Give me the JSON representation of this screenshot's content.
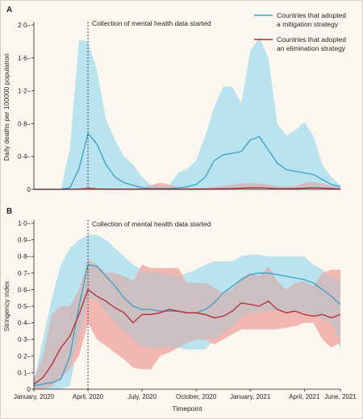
{
  "figure": {
    "xlabel": "Timepoint",
    "colors": {
      "mitigation": "#3a9fc7",
      "mitigation_band": "#b9e3ef",
      "elimination": "#b02a36",
      "elimination_band": "#f2b7b0",
      "overlap": "#cdbfc1",
      "axis": "#231f20",
      "background": "#fcf7ee"
    }
  },
  "chart_data": [
    {
      "panel": "A",
      "type": "area",
      "ylabel": "Daily deaths per 100000 population",
      "ylim": [
        0,
        2.0
      ],
      "yticks": [
        "0",
        "0·4",
        "0·8",
        "1·2",
        "1·6",
        "2·0"
      ],
      "ytick_values": [
        0,
        0.4,
        0.8,
        1.2,
        1.6,
        2.0
      ],
      "annotation": "Collection of mental health data started",
      "annotation_x": 3,
      "legend": [
        {
          "series": "mitigation",
          "label_lines": [
            "Countries that adopted",
            "a mitigation strategy"
          ]
        },
        {
          "series": "elimination",
          "label_lines": [
            "Countries that adopted",
            "an elimination strategy"
          ]
        }
      ],
      "legend_position": "top-right",
      "x": [
        0,
        0.5,
        1,
        1.5,
        2,
        2.5,
        3,
        3.5,
        4,
        4.5,
        5,
        5.5,
        6,
        6.5,
        7,
        7.5,
        8,
        8.5,
        9,
        9.5,
        10,
        10.5,
        11,
        11.5,
        12,
        12.5,
        13,
        13.5,
        14,
        14.5,
        15,
        15.5,
        16,
        16.5,
        17
      ],
      "series": [
        {
          "key": "mitigation",
          "name": "Countries that adopted a mitigation strategy",
          "mean": [
            0,
            0,
            0,
            0,
            0.02,
            0.25,
            0.68,
            0.55,
            0.3,
            0.15,
            0.08,
            0.05,
            0.02,
            0.01,
            0.01,
            0.01,
            0.02,
            0.03,
            0.06,
            0.15,
            0.35,
            0.42,
            0.44,
            0.46,
            0.6,
            0.64,
            0.48,
            0.32,
            0.24,
            0.22,
            0.2,
            0.18,
            0.12,
            0.06,
            0.03
          ],
          "upper": [
            0,
            0,
            0,
            0,
            0.5,
            1.82,
            1.8,
            1.45,
            0.85,
            0.6,
            0.4,
            0.3,
            0.15,
            0.05,
            0.03,
            0.05,
            0.2,
            0.25,
            0.35,
            0.65,
            1.0,
            1.25,
            1.25,
            1.05,
            1.68,
            1.85,
            1.6,
            0.8,
            0.65,
            0.72,
            0.82,
            0.65,
            0.3,
            0.15,
            0.05
          ],
          "lower": [
            0,
            0,
            0,
            0,
            0,
            0,
            0,
            0,
            0,
            0,
            0,
            0,
            0,
            0,
            0,
            0,
            0,
            0,
            0,
            0,
            0,
            0,
            0,
            0,
            0,
            0,
            0,
            0,
            0,
            0,
            0,
            0,
            0,
            0,
            0
          ]
        },
        {
          "key": "elimination",
          "name": "Countries that adopted an elimination strategy",
          "mean": [
            0,
            0,
            0,
            0,
            0,
            0.003,
            0.01,
            0.005,
            0.003,
            0.002,
            0.002,
            0.002,
            0.002,
            0.003,
            0.005,
            0.003,
            0.002,
            0.002,
            0.002,
            0.003,
            0.005,
            0.008,
            0.01,
            0.015,
            0.02,
            0.02,
            0.015,
            0.01,
            0.008,
            0.01,
            0.015,
            0.02,
            0.015,
            0.01,
            0.005
          ],
          "upper": [
            0,
            0,
            0,
            0,
            0,
            0.01,
            0.03,
            0.02,
            0.01,
            0.01,
            0.01,
            0.01,
            0.02,
            0.05,
            0.08,
            0.06,
            0.03,
            0.02,
            0.02,
            0.02,
            0.03,
            0.04,
            0.06,
            0.07,
            0.08,
            0.07,
            0.06,
            0.04,
            0.03,
            0.04,
            0.08,
            0.09,
            0.07,
            0.04,
            0.02
          ],
          "lower": [
            0,
            0,
            0,
            0,
            0,
            0,
            0,
            0,
            0,
            0,
            0,
            0,
            0,
            0,
            0,
            0,
            0,
            0,
            0,
            0,
            0,
            0,
            0,
            0,
            0,
            0,
            0,
            0,
            0,
            0,
            0,
            0,
            0,
            0,
            0
          ]
        }
      ]
    },
    {
      "panel": "B",
      "type": "area",
      "ylabel": "Stringency index",
      "ylim": [
        0,
        1.0
      ],
      "yticks": [
        "0",
        "0·1",
        "0·2",
        "0·3",
        "0·4",
        "0·5",
        "0·6",
        "0·7",
        "0·8",
        "0·9",
        "1·0"
      ],
      "ytick_values": [
        0,
        0.1,
        0.2,
        0.3,
        0.4,
        0.5,
        0.6,
        0.7,
        0.8,
        0.9,
        1.0
      ],
      "annotation": "Collection of mental health data started",
      "annotation_x": 3,
      "xticks": [
        "January, 2020",
        "April, 2020",
        "July, 2020",
        "October, 2020",
        "January, 2021",
        "April, 2021",
        "June, 2021"
      ],
      "xtick_values": [
        0,
        3,
        6,
        9,
        12,
        15,
        17
      ],
      "x": [
        0,
        0.5,
        1,
        1.5,
        2,
        2.5,
        3,
        3.5,
        4,
        4.5,
        5,
        5.5,
        6,
        6.5,
        7,
        7.5,
        8,
        8.5,
        9,
        9.5,
        10,
        10.5,
        11,
        11.5,
        12,
        12.5,
        13,
        13.5,
        14,
        14.5,
        15,
        15.5,
        16,
        16.5,
        17
      ],
      "series": [
        {
          "key": "mitigation",
          "name": "Countries that adopted a mitigation strategy",
          "mean": [
            0.02,
            0.03,
            0.04,
            0.06,
            0.2,
            0.5,
            0.75,
            0.74,
            0.68,
            0.62,
            0.55,
            0.5,
            0.48,
            0.48,
            0.47,
            0.47,
            0.47,
            0.46,
            0.46,
            0.48,
            0.52,
            0.58,
            0.62,
            0.66,
            0.69,
            0.7,
            0.7,
            0.69,
            0.68,
            0.67,
            0.66,
            0.64,
            0.6,
            0.56,
            0.51
          ],
          "upper": [
            0.05,
            0.3,
            0.55,
            0.75,
            0.85,
            0.9,
            0.93,
            0.93,
            0.9,
            0.85,
            0.8,
            0.75,
            0.72,
            0.7,
            0.7,
            0.69,
            0.68,
            0.7,
            0.72,
            0.75,
            0.77,
            0.77,
            0.77,
            0.8,
            0.81,
            0.81,
            0.8,
            0.8,
            0.8,
            0.8,
            0.8,
            0.75,
            0.72,
            0.68,
            0.65
          ],
          "lower": [
            0,
            0,
            0,
            0,
            0.02,
            0.3,
            0.55,
            0.53,
            0.47,
            0.4,
            0.35,
            0.3,
            0.26,
            0.25,
            0.25,
            0.25,
            0.25,
            0.24,
            0.24,
            0.24,
            0.3,
            0.34,
            0.38,
            0.43,
            0.46,
            0.46,
            0.47,
            0.47,
            0.47,
            0.46,
            0.46,
            0.45,
            0.42,
            0.4,
            0.24
          ]
        },
        {
          "key": "elimination",
          "name": "Countries that adopted an elimination strategy",
          "mean": [
            0.03,
            0.07,
            0.15,
            0.25,
            0.32,
            0.45,
            0.6,
            0.56,
            0.53,
            0.49,
            0.46,
            0.4,
            0.45,
            0.45,
            0.46,
            0.48,
            0.47,
            0.46,
            0.46,
            0.45,
            0.43,
            0.44,
            0.47,
            0.52,
            0.51,
            0.5,
            0.53,
            0.48,
            0.46,
            0.47,
            0.45,
            0.44,
            0.45,
            0.43,
            0.45
          ]
        }
      ],
      "elimination_band": {
        "upper": [
          0.06,
          0.2,
          0.45,
          0.5,
          0.5,
          0.6,
          0.78,
          0.75,
          0.7,
          0.7,
          0.68,
          0.65,
          0.75,
          0.73,
          0.73,
          0.73,
          0.73,
          0.64,
          0.64,
          0.64,
          0.61,
          0.58,
          0.6,
          0.67,
          0.7,
          0.68,
          0.74,
          0.65,
          0.6,
          0.64,
          0.65,
          0.62,
          0.7,
          0.72,
          0.72
        ],
        "lower": [
          0,
          0,
          0.02,
          0.07,
          0.12,
          0.2,
          0.4,
          0.3,
          0.26,
          0.22,
          0.18,
          0.13,
          0.12,
          0.12,
          0.2,
          0.22,
          0.25,
          0.28,
          0.3,
          0.3,
          0.27,
          0.3,
          0.33,
          0.36,
          0.36,
          0.36,
          0.36,
          0.36,
          0.37,
          0.38,
          0.4,
          0.4,
          0.3,
          0.25,
          0.28
        ]
      }
    }
  ]
}
